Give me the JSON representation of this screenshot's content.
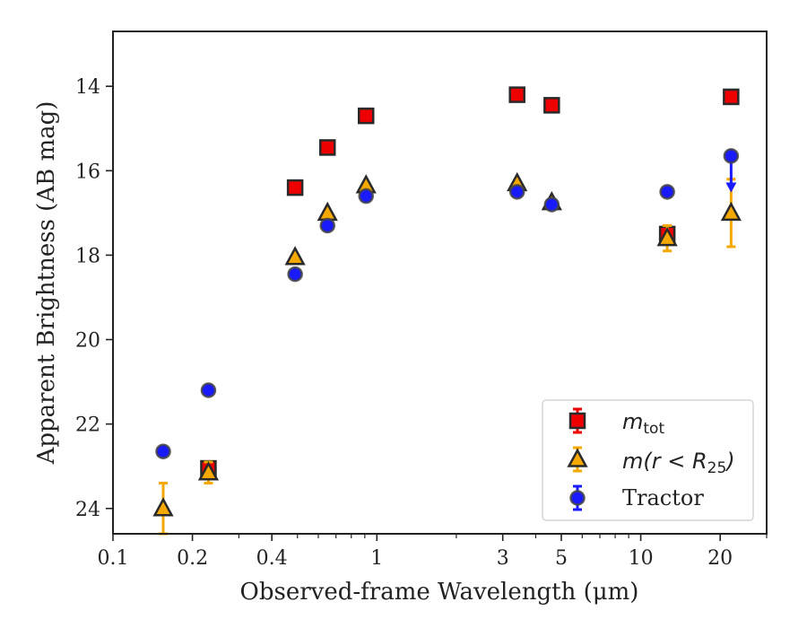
{
  "chart_data": {
    "type": "scatter",
    "xlabel": "Observed-frame Wavelength (μm)",
    "ylabel": "Apparent Brightness (AB mag)",
    "xscale": "log",
    "xlim": [
      0.1,
      30
    ],
    "ylim": [
      24.6,
      12.7
    ],
    "y_inverted": true,
    "x_ticks": [
      {
        "value": 0.1,
        "label": "0.1"
      },
      {
        "value": 0.2,
        "label": "0.2"
      },
      {
        "value": 0.4,
        "label": "0.4"
      },
      {
        "value": 1,
        "label": "1"
      },
      {
        "value": 3,
        "label": "3"
      },
      {
        "value": 5,
        "label": "5"
      },
      {
        "value": 10,
        "label": "10"
      },
      {
        "value": 20,
        "label": "20"
      }
    ],
    "x_minor_ticks": [
      0.3,
      0.5,
      0.6,
      0.7,
      0.8,
      0.9,
      2,
      4,
      6,
      7,
      8,
      9,
      30
    ],
    "y_ticks": [
      {
        "value": 14,
        "label": "14"
      },
      {
        "value": 16,
        "label": "16"
      },
      {
        "value": 18,
        "label": "18"
      },
      {
        "value": 20,
        "label": "20"
      },
      {
        "value": 22,
        "label": "22"
      },
      {
        "value": 24,
        "label": "24"
      }
    ],
    "grid": false,
    "legend_position": "lower-right",
    "series": [
      {
        "name": "m_tot",
        "marker": "square",
        "color": "#ee0000",
        "errorbar_color": "#ee0000",
        "points": [
          {
            "x": 0.23,
            "y": 23.05,
            "err": 0.15
          },
          {
            "x": 0.49,
            "y": 16.4
          },
          {
            "x": 0.65,
            "y": 15.45
          },
          {
            "x": 0.91,
            "y": 14.7
          },
          {
            "x": 3.4,
            "y": 14.2
          },
          {
            "x": 4.6,
            "y": 14.45
          },
          {
            "x": 12.6,
            "y": 17.5,
            "err": 0.2
          },
          {
            "x": 22.0,
            "y": 14.25
          }
        ]
      },
      {
        "name": "m(r < R25)",
        "marker": "triangle",
        "color": "#f5a800",
        "errorbar_color": "#f5a800",
        "points": [
          {
            "x": 0.155,
            "y": 24.0,
            "err": 0.6
          },
          {
            "x": 0.23,
            "y": 23.15,
            "err": 0.25
          },
          {
            "x": 0.49,
            "y": 18.05
          },
          {
            "x": 0.65,
            "y": 17.0
          },
          {
            "x": 0.91,
            "y": 16.35
          },
          {
            "x": 3.4,
            "y": 16.3
          },
          {
            "x": 4.6,
            "y": 16.75
          },
          {
            "x": 12.6,
            "y": 17.6,
            "err": 0.3
          },
          {
            "x": 22.0,
            "y": 17.0,
            "err": 0.8
          }
        ]
      },
      {
        "name": "Tractor",
        "marker": "circle",
        "color": "#1a1aff",
        "errorbar_color": "#1a1aff",
        "points": [
          {
            "x": 0.155,
            "y": 22.65
          },
          {
            "x": 0.23,
            "y": 21.2
          },
          {
            "x": 0.49,
            "y": 18.45
          },
          {
            "x": 0.65,
            "y": 17.3
          },
          {
            "x": 0.91,
            "y": 16.6
          },
          {
            "x": 3.4,
            "y": 16.5
          },
          {
            "x": 4.6,
            "y": 16.8
          },
          {
            "x": 12.6,
            "y": 16.5
          },
          {
            "x": 22.0,
            "y": 15.65,
            "upper_limit_to": 16.45
          }
        ]
      }
    ],
    "legend": [
      {
        "symbol": "m",
        "subscript": "tot",
        "style": "math"
      },
      {
        "prefix": "m(r < R",
        "subscript": "25",
        "suffix": ")",
        "style": "math"
      },
      {
        "text": "Tractor",
        "style": "serif"
      }
    ]
  }
}
